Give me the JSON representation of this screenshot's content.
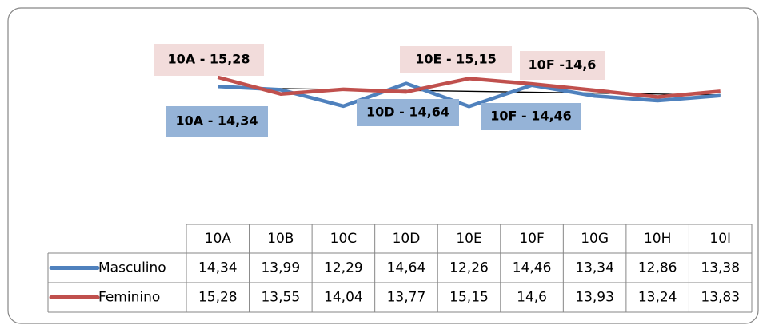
{
  "chart_data": {
    "type": "line",
    "categories": [
      "10A",
      "10B",
      "10C",
      "10D",
      "10E",
      "10F",
      "10G",
      "10H",
      "10I"
    ],
    "series": [
      {
        "name": "Masculino",
        "color": "#4f81bd",
        "values": [
          14.34,
          13.99,
          12.29,
          14.64,
          12.26,
          14.46,
          13.34,
          12.86,
          13.38
        ],
        "value_labels": [
          "14,34",
          "13,99",
          "12,29",
          "14,64",
          "12,26",
          "14,46",
          "13,34",
          "12,86",
          "13,38"
        ]
      },
      {
        "name": "Feminino",
        "color": "#c0504d",
        "values": [
          15.28,
          13.55,
          14.04,
          13.77,
          15.15,
          14.6,
          13.93,
          13.24,
          13.83
        ],
        "value_labels": [
          "15,28",
          "13,55",
          "14,04",
          "13,77",
          "15,15",
          "14,6",
          "13,93",
          "13,24",
          "13,83"
        ]
      }
    ],
    "ylim": [
      0,
      20
    ],
    "trendline": true,
    "annotations": [
      {
        "text": "10A - 15,28",
        "color": "#f2dcdb"
      },
      {
        "text": "10E - 15,15",
        "color": "#f2dcdb"
      },
      {
        "text": "10F -14,6",
        "color": "#f2dcdb"
      },
      {
        "text": "10A - 14,34",
        "color": "#95b3d7"
      },
      {
        "text": "10D - 14,64",
        "color": "#95b3d7"
      },
      {
        "text": "10F - 14,46",
        "color": "#95b3d7"
      }
    ]
  }
}
